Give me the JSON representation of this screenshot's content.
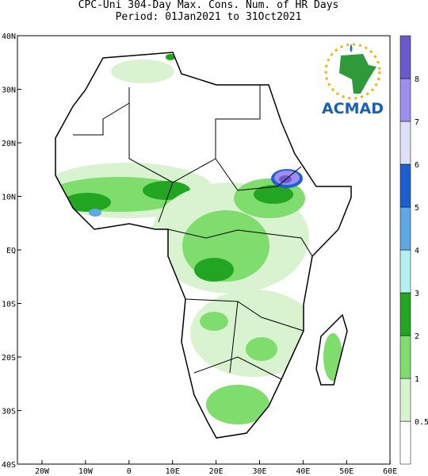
{
  "header": {
    "title": "CPC-Uni 304-Day Max. Cons. Num. of HR Days",
    "period": "Period: 01Jan2021 to 31Oct2021"
  },
  "x_axis": {
    "labels": [
      "20W",
      "10W",
      "0",
      "10E",
      "20E",
      "30E",
      "40E",
      "50E",
      "60E"
    ]
  },
  "y_axis": {
    "labels": [
      "40N",
      "30N",
      "20N",
      "10N",
      "EQ",
      "10S",
      "20S",
      "30S",
      "40S"
    ]
  },
  "colorbar": {
    "labels": [
      0.5,
      1,
      2,
      3,
      4,
      5,
      6,
      7,
      8
    ]
  },
  "logo": {
    "text": "ACMAD"
  }
}
